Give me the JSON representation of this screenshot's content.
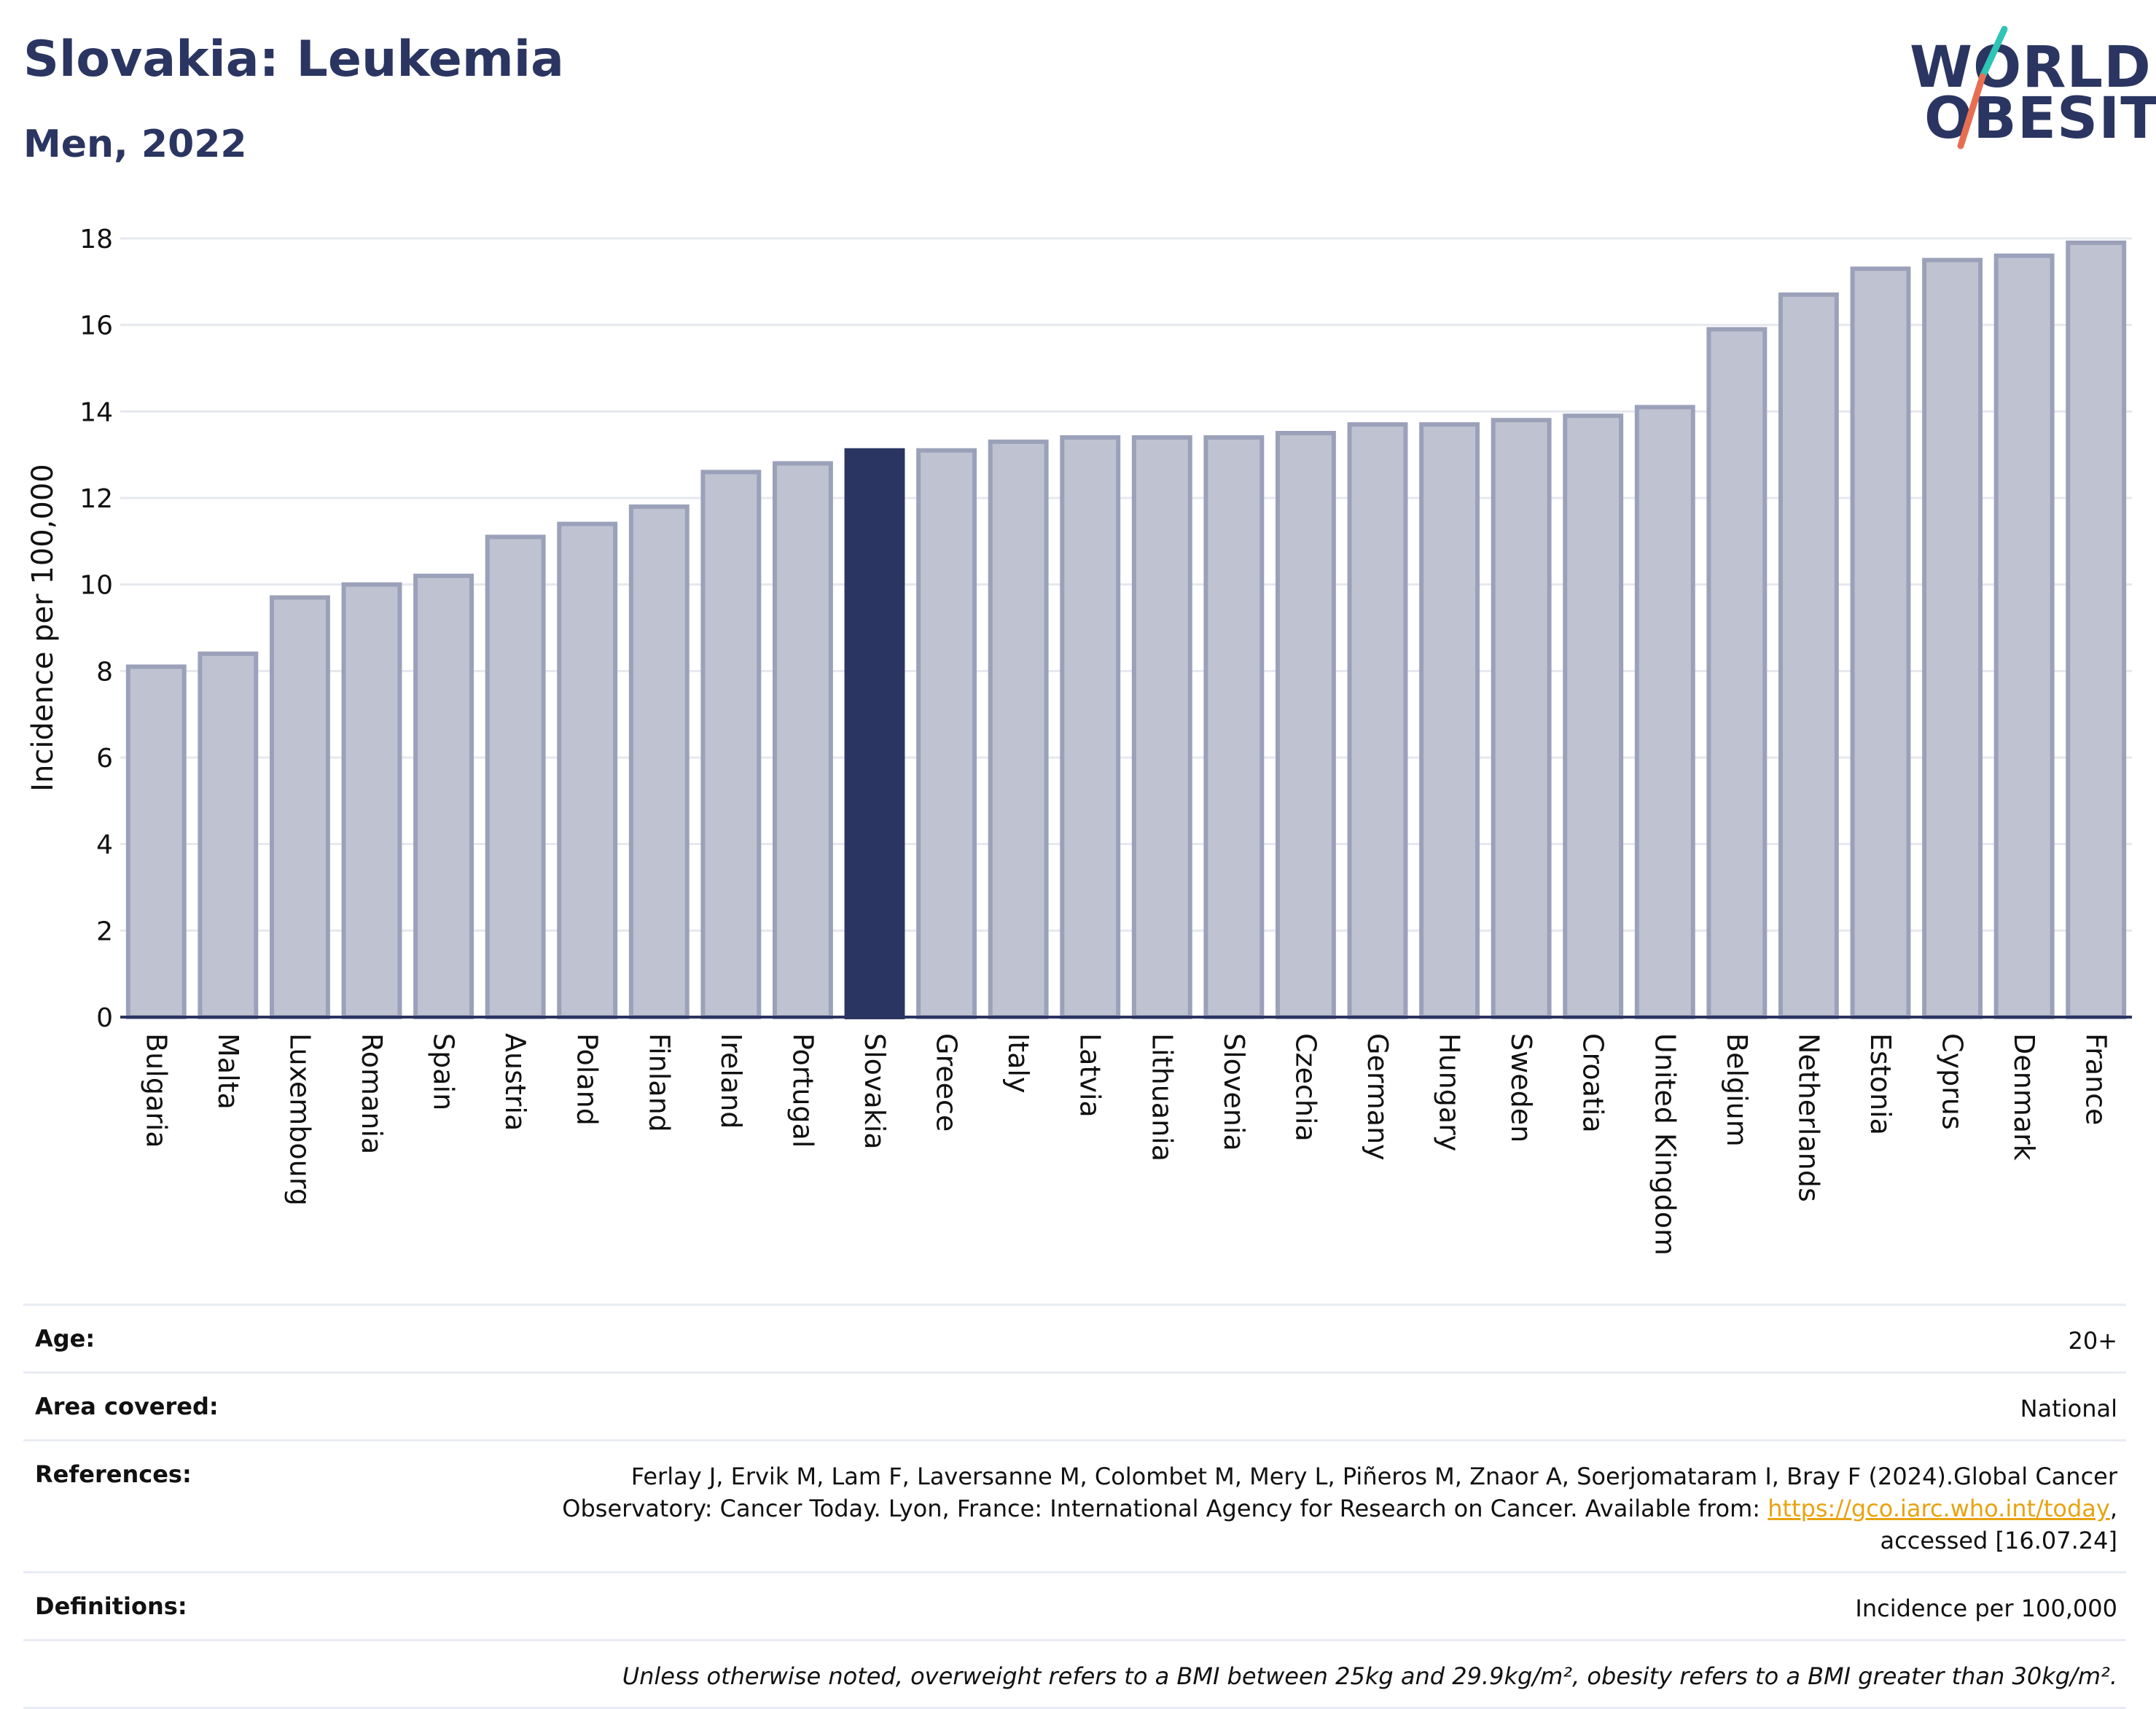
{
  "header": {
    "title": "Slovakia: Leukemia",
    "subtitle": "Men, 2022"
  },
  "logo": {
    "line1": "WORLD",
    "line2": "OBESITY",
    "text_color": "#2b3561",
    "slash_colors": [
      "#2ec4b6",
      "#e76f51"
    ]
  },
  "colors": {
    "highlight": "#2b3561",
    "bar_fill": "#bfc3d1",
    "bar_stroke": "#9ba1b9",
    "grid": "#e6e8ef",
    "axis": "#2b3561"
  },
  "chart_data": {
    "type": "bar",
    "ylabel": "Incidence per 100,000",
    "ylim": [
      0,
      18
    ],
    "yticks": [
      0,
      2,
      4,
      6,
      8,
      10,
      12,
      14,
      16,
      18
    ],
    "highlight": "Slovakia",
    "categories": [
      "Bulgaria",
      "Malta",
      "Luxembourg",
      "Romania",
      "Spain",
      "Austria",
      "Poland",
      "Finland",
      "Ireland",
      "Portugal",
      "Slovakia",
      "Greece",
      "Italy",
      "Latvia",
      "Lithuania",
      "Slovenia",
      "Czechia",
      "Germany",
      "Hungary",
      "Sweden",
      "Croatia",
      "United Kingdom",
      "Belgium",
      "Netherlands",
      "Estonia",
      "Cyprus",
      "Denmark",
      "France"
    ],
    "values": [
      8.1,
      8.4,
      9.7,
      10.0,
      10.2,
      11.1,
      11.4,
      11.8,
      12.6,
      12.8,
      13.1,
      13.1,
      13.3,
      13.4,
      13.4,
      13.4,
      13.5,
      13.7,
      13.7,
      13.8,
      13.9,
      14.1,
      15.9,
      16.7,
      17.3,
      17.5,
      17.6,
      17.9
    ],
    "grid": true
  },
  "info": {
    "age_label": "Age:",
    "age_value": "20+",
    "area_label": "Area covered:",
    "area_value": "National",
    "references_label": "References:",
    "references_line1": "Ferlay J, Ervik M, Lam F, Laversanne M, Colombet M, Mery L, Piñeros M, Znaor A, Soerjomataram I, Bray F (2024).Global Cancer",
    "references_line2": "Observatory: Cancer Today. Lyon, France: International Agency for Research on Cancer. Available from:",
    "references_link": "https://gco.iarc.who.int/today",
    "references_line3": "accessed [16.07.24]",
    "definitions_label": "Definitions:",
    "definitions_value": "Incidence per 100,000",
    "note": "Unless otherwise noted, overweight refers to a BMI between 25kg and 29.9kg/m², obesity refers to a BMI greater than 30kg/m²."
  }
}
